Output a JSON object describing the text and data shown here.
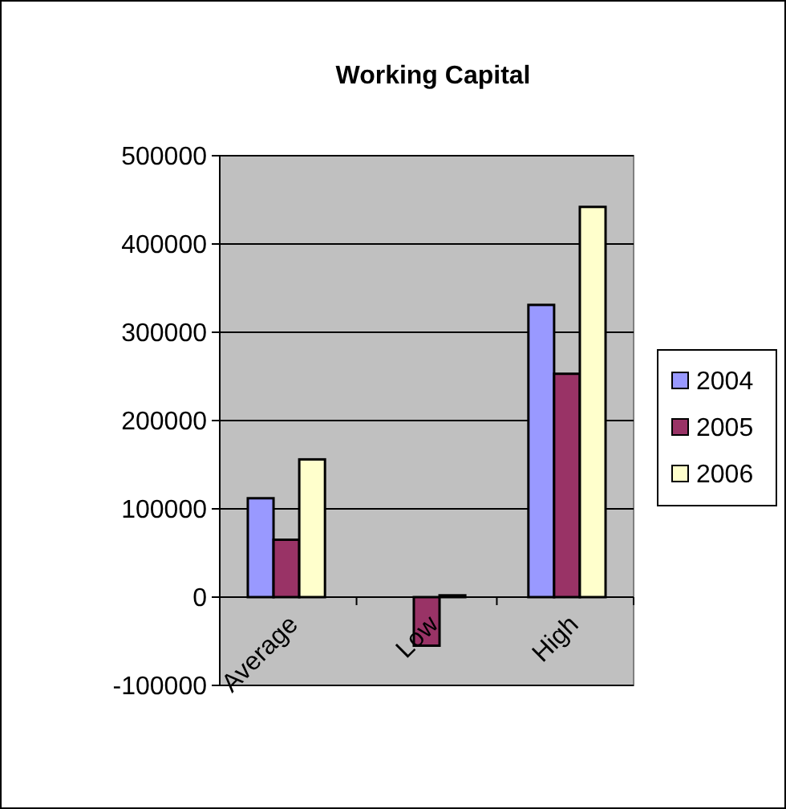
{
  "chart_data": {
    "type": "bar",
    "title": "Working Capital",
    "categories": [
      "Average",
      "Low",
      "High"
    ],
    "series": [
      {
        "name": "2004",
        "color": "#9999ff",
        "values": [
          112000,
          null,
          331000
        ]
      },
      {
        "name": "2005",
        "color": "#993366",
        "values": [
          65000,
          -55000,
          253000
        ]
      },
      {
        "name": "2006",
        "color": "#ffffcc",
        "values": [
          156000,
          2000,
          442000
        ]
      }
    ],
    "ylim": [
      -100000,
      500000
    ],
    "yticks": [
      -100000,
      0,
      100000,
      200000,
      300000,
      400000,
      500000
    ],
    "grid": "y",
    "legend": "right"
  }
}
